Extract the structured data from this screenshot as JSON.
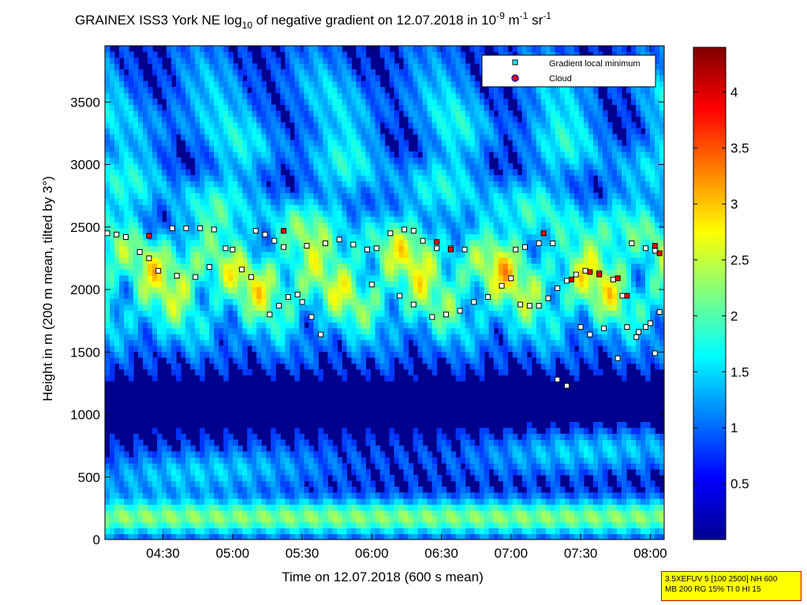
{
  "chart_data": {
    "type": "heatmap",
    "title": {
      "prefix": "GRAINEX ISS3 York NE log",
      "log_base": "10",
      "middle": " of negative gradient on 12.07.2018 in 10",
      "exp1": "-9",
      "unit1": " m",
      "exp2": "-1",
      "unit2": " sr",
      "exp3": "-1"
    },
    "xlabel": "Time on 12.07.2018 (600 s mean)",
    "ylabel": "Height in m (200 m mean, tilted by 3°)",
    "xlim": [
      "04:05",
      "08:06"
    ],
    "ylim": [
      0,
      3950
    ],
    "x_tick_labels": [
      "04:30",
      "05:00",
      "05:30",
      "06:00",
      "06:30",
      "07:00",
      "07:30",
      "08:00"
    ],
    "x_ticks_minutes": [
      270,
      300,
      330,
      360,
      390,
      420,
      450,
      480
    ],
    "y_ticks": [
      "0",
      "500",
      "1000",
      "1500",
      "2000",
      "2500",
      "3000",
      "3500"
    ],
    "colorbar": {
      "colormap": "jet",
      "range": [
        0,
        4.4
      ],
      "tick_labels": [
        "0.5",
        "1",
        "1.5",
        "2",
        "2.5",
        "3",
        "3.5",
        "4"
      ],
      "tick_values": [
        0.5,
        1,
        1.5,
        2,
        2.5,
        3,
        3.5,
        4
      ]
    },
    "legend": {
      "placement": "top-right",
      "entries": [
        {
          "label": "Gradient local minimum",
          "marker": "square",
          "color": "#00ffff"
        },
        {
          "label": "Cloud",
          "marker": "circle",
          "color": "#ff0000"
        }
      ]
    },
    "series": [
      {
        "name": "Gradient local minimum",
        "points_time_height": [
          [
            "04:06",
            2450
          ],
          [
            "04:10",
            2440
          ],
          [
            "04:14",
            2420
          ],
          [
            "04:20",
            2300
          ],
          [
            "04:24",
            2250
          ],
          [
            "04:28",
            2150
          ],
          [
            "04:34",
            2490
          ],
          [
            "04:40",
            2490
          ],
          [
            "04:46",
            2490
          ],
          [
            "04:52",
            2480
          ],
          [
            "04:36",
            2110
          ],
          [
            "04:44",
            2100
          ],
          [
            "04:50",
            2180
          ],
          [
            "04:57",
            2330
          ],
          [
            "05:00",
            2320
          ],
          [
            "05:04",
            2160
          ],
          [
            "05:08",
            2100
          ],
          [
            "05:10",
            2470
          ],
          [
            "05:14",
            2440
          ],
          [
            "05:18",
            2390
          ],
          [
            "05:22",
            2340
          ],
          [
            "05:16",
            1800
          ],
          [
            "05:20",
            1870
          ],
          [
            "05:24",
            1940
          ],
          [
            "05:28",
            1960
          ],
          [
            "05:30",
            1900
          ],
          [
            "05:34",
            1780
          ],
          [
            "05:38",
            1640
          ],
          [
            "05:32",
            2350
          ],
          [
            "05:40",
            2370
          ],
          [
            "05:46",
            2400
          ],
          [
            "05:52",
            2360
          ],
          [
            "05:58",
            2320
          ],
          [
            "06:02",
            2330
          ],
          [
            "06:00",
            2040
          ],
          [
            "06:08",
            2450
          ],
          [
            "06:14",
            2480
          ],
          [
            "06:18",
            2470
          ],
          [
            "06:12",
            1950
          ],
          [
            "06:18",
            1880
          ],
          [
            "06:22",
            2390
          ],
          [
            "06:28",
            2330
          ],
          [
            "06:34",
            2330
          ],
          [
            "06:40",
            2320
          ],
          [
            "06:26",
            1780
          ],
          [
            "06:32",
            1800
          ],
          [
            "06:38",
            1830
          ],
          [
            "06:44",
            1900
          ],
          [
            "06:50",
            1940
          ],
          [
            "06:56",
            2030
          ],
          [
            "07:00",
            2090
          ],
          [
            "07:04",
            1880
          ],
          [
            "07:08",
            1870
          ],
          [
            "07:12",
            1870
          ],
          [
            "07:16",
            1930
          ],
          [
            "07:20",
            2010
          ],
          [
            "07:02",
            2320
          ],
          [
            "07:06",
            2340
          ],
          [
            "07:12",
            2370
          ],
          [
            "07:18",
            2370
          ],
          [
            "07:24",
            2070
          ],
          [
            "07:28",
            2120
          ],
          [
            "07:32",
            2150
          ],
          [
            "07:38",
            2130
          ],
          [
            "07:44",
            2080
          ],
          [
            "07:48",
            1950
          ],
          [
            "07:30",
            1700
          ],
          [
            "07:34",
            1640
          ],
          [
            "07:40",
            1690
          ],
          [
            "07:20",
            1280
          ],
          [
            "07:24",
            1230
          ],
          [
            "07:50",
            1700
          ],
          [
            "07:54",
            1620
          ],
          [
            "07:58",
            1700
          ],
          [
            "08:00",
            1730
          ],
          [
            "08:02",
            1490
          ],
          [
            "08:04",
            1820
          ],
          [
            "07:52",
            2370
          ],
          [
            "07:58",
            2330
          ],
          [
            "08:02",
            2310
          ],
          [
            "07:55",
            1660
          ],
          [
            "07:46",
            1450
          ]
        ]
      },
      {
        "name": "Cloud",
        "points_time_height": [
          [
            "04:24",
            2430
          ],
          [
            "05:22",
            2470
          ],
          [
            "06:28",
            2380
          ],
          [
            "06:34",
            2320
          ],
          [
            "07:14",
            2450
          ],
          [
            "07:34",
            2140
          ],
          [
            "07:26",
            2080
          ],
          [
            "07:46",
            2090
          ],
          [
            "07:50",
            1950
          ],
          [
            "08:02",
            2350
          ],
          [
            "08:04",
            2290
          ],
          [
            "07:38",
            2120
          ]
        ]
      }
    ]
  },
  "info_box": {
    "line1": "3.5XEFUV 5 [100 2500] NH 600",
    "line2": "MB 200 RG 15% TI 0 HI 15"
  }
}
